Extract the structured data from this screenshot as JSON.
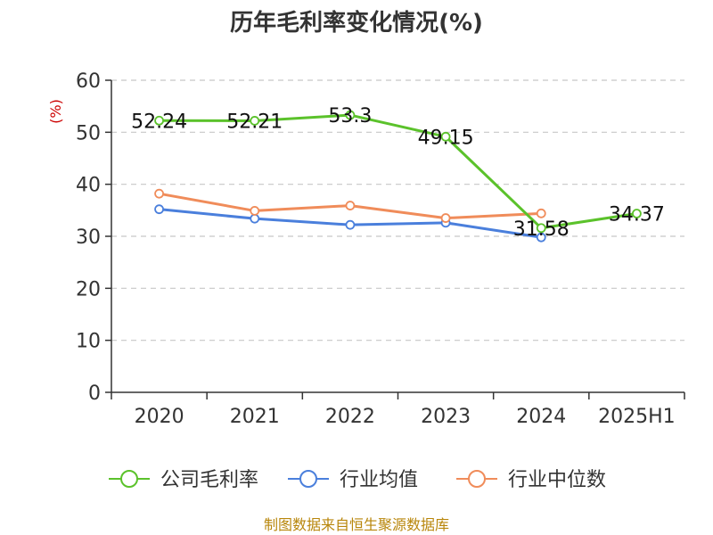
{
  "chart_data": {
    "type": "line",
    "title": "历年毛利率变化情况(%)",
    "ylabel": "(%)",
    "xlabel": "",
    "categories": [
      "2020",
      "2021",
      "2022",
      "2023",
      "2024",
      "2025H1"
    ],
    "ylim": [
      0,
      60
    ],
    "yticks": [
      0,
      10,
      20,
      30,
      40,
      50,
      60
    ],
    "grid": true,
    "legend_position": "bottom",
    "series": [
      {
        "name": "公司毛利率",
        "color": "#5bc22b",
        "values": [
          52.24,
          52.21,
          53.3,
          49.15,
          31.58,
          34.37
        ],
        "labels": [
          "52.24",
          "52.21",
          "53.3",
          "49.15",
          "31.58",
          "34.37"
        ]
      },
      {
        "name": "行业均值",
        "color": "#4a7fdc",
        "values": [
          35.2,
          33.4,
          32.2,
          32.6,
          29.8,
          null
        ]
      },
      {
        "name": "行业中位数",
        "color": "#f08c5a",
        "values": [
          38.2,
          34.9,
          35.9,
          33.5,
          34.4,
          null
        ]
      }
    ]
  },
  "footer": {
    "source": "制图数据来自恒生聚源数据库"
  }
}
